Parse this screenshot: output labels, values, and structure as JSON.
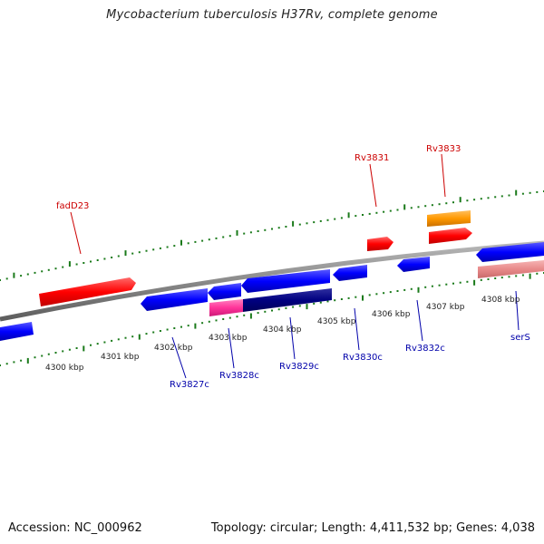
{
  "title": "Mycobacterium tuberculosis H37Rv, complete genome",
  "footer": {
    "accession": "Accession: NC_000962",
    "summary": "Topology: circular; Length: 4,411,532 bp; Genes: 4,038"
  },
  "colors": {
    "forward_gene": "#ff0000",
    "reverse_gene": "#0000ff",
    "reverse_gene_dark": "#000080",
    "orange_feature": "#ff9900",
    "pink_feature": "#ff3399",
    "rna_feature": "#e88a8a",
    "forward_label": "#cc0000",
    "reverse_label": "#0000aa",
    "tick": "#1a7a1a",
    "backbone": "#888888"
  },
  "scale_labels": [
    "4300 kbp",
    "4301 kbp",
    "4302 kbp",
    "4303 kbp",
    "4304 kbp",
    "4305 kbp",
    "4306 kbp",
    "4307 kbp",
    "4308 kbp"
  ],
  "gene_labels": {
    "forward": [
      "fadD23",
      "Rv3831",
      "Rv3833"
    ],
    "reverse": [
      "Rv3827c",
      "Rv3828c",
      "Rv3829c",
      "Rv3830c",
      "Rv3832c",
      "serS"
    ]
  }
}
